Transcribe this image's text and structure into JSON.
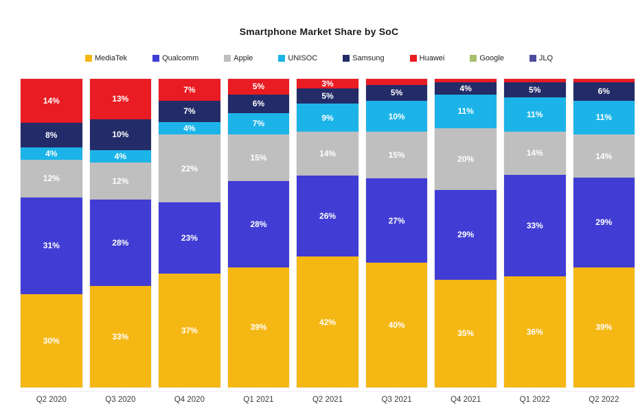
{
  "title": "Smartphone Market Share by SoC",
  "chart_data": {
    "type": "bar",
    "stacked": true,
    "unit": "%",
    "title": "Smartphone Market Share by SoC",
    "categories": [
      "Q2 2020",
      "Q3 2020",
      "Q4 2020",
      "Q1 2021",
      "Q2 2021",
      "Q3 2021",
      "Q4 2021",
      "Q1 2022",
      "Q2 2022"
    ],
    "series": [
      {
        "name": "MediaTek",
        "color": "#F5B714",
        "values": [
          30,
          33,
          37,
          39,
          42,
          40,
          35,
          36,
          39
        ]
      },
      {
        "name": "Qualcomm",
        "color": "#413DD4",
        "values": [
          31,
          28,
          23,
          28,
          26,
          27,
          29,
          33,
          29
        ]
      },
      {
        "name": "Apple",
        "color": "#BFBFBF",
        "values": [
          12,
          12,
          22,
          15,
          14,
          15,
          20,
          14,
          14
        ]
      },
      {
        "name": "UNISOC",
        "color": "#1CB4E8",
        "values": [
          4,
          4,
          4,
          7,
          9,
          10,
          11,
          11,
          11
        ]
      },
      {
        "name": "Samsung",
        "color": "#232B68",
        "values": [
          8,
          10,
          7,
          6,
          5,
          5,
          4,
          5,
          6
        ]
      },
      {
        "name": "Huawei",
        "color": "#E91C23",
        "values": [
          14,
          13,
          7,
          5,
          3,
          2,
          1,
          1,
          1
        ]
      },
      {
        "name": "Google",
        "color": "#A6C06A",
        "values": [
          0,
          0,
          0,
          0,
          0,
          0,
          0,
          0,
          0
        ]
      },
      {
        "name": "JLQ",
        "color": "#4E4C9E",
        "values": [
          0,
          0,
          0,
          0,
          0,
          0,
          0,
          0,
          0
        ]
      }
    ],
    "label_format": "{v}%",
    "min_label_value": 3,
    "label_color": "#ffffff",
    "legend_position": "top",
    "grid": false,
    "ylim": [
      0,
      100
    ]
  }
}
